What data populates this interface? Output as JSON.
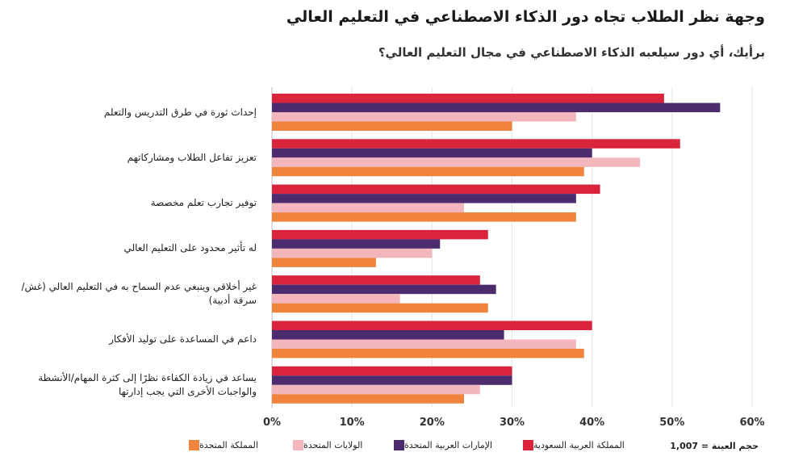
{
  "chart_data": {
    "type": "bar",
    "orientation": "horizontal",
    "title": "وجهة نظر الطلاب تجاه دور الذكاء الاصطناعي في التعليم العالي",
    "subtitle": "برأيك، أي دور سيلعبه الذكاء الاصطناعي في مجال التعليم العالي؟",
    "categories": [
      "إحداث ثورة في طرق التدريس والتعلم",
      "تعزيز تفاعل الطلاب ومشاركاتهم",
      "توفير تجارب تعلم مخصصة",
      "له تأثير محدود على التعليم العالي",
      "غير أخلاقي وينبغي عدم السماح به في التعليم العالي (غش/سرقة أدبية)",
      "داعم في المساعدة على توليد الأفكار",
      "يساعد في زيادة الكفاءة نظرًا إلى كثرة المهام/الأنشطة والواجبات الأخرى التي يجب إدارتها"
    ],
    "series": [
      {
        "name": "المملكة العربية السعودية",
        "color": "#d9243c",
        "values": [
          49,
          51,
          41,
          27,
          26,
          40,
          30
        ]
      },
      {
        "name": "الإمارات العربية المتحدة",
        "color": "#4c2b6e",
        "values": [
          56,
          40,
          38,
          21,
          28,
          29,
          30
        ]
      },
      {
        "name": "الولايات المتحدة",
        "color": "#f4b6bd",
        "values": [
          38,
          46,
          24,
          20,
          16,
          38,
          26
        ]
      },
      {
        "name": "المملكة المتحدة",
        "color": "#f0843d",
        "values": [
          30,
          39,
          38,
          13,
          27,
          39,
          24
        ]
      }
    ],
    "xlim": [
      0,
      60
    ],
    "xticks": [
      "0%",
      "10%",
      "20%",
      "30%",
      "40%",
      "50%",
      "60%"
    ],
    "grid": true,
    "legend_position": "bottom",
    "sample_note": "حجم العينة = 1,007"
  }
}
